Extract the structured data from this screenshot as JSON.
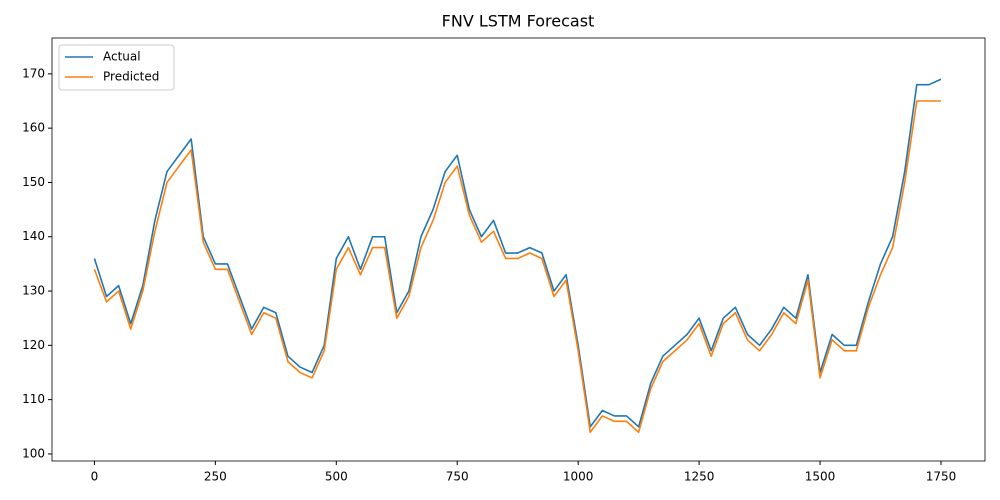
{
  "chart_data": {
    "type": "line",
    "title": "FNV LSTM Forecast",
    "x": [
      0,
      25,
      50,
      75,
      100,
      125,
      150,
      175,
      200,
      225,
      250,
      275,
      300,
      325,
      350,
      375,
      400,
      425,
      450,
      475,
      500,
      525,
      550,
      575,
      600,
      625,
      650,
      675,
      700,
      725,
      750,
      775,
      800,
      825,
      850,
      875,
      900,
      925,
      950,
      975,
      1000,
      1025,
      1050,
      1075,
      1100,
      1125,
      1150,
      1175,
      1200,
      1225,
      1250,
      1275,
      1300,
      1325,
      1350,
      1375,
      1400,
      1425,
      1450,
      1475,
      1500,
      1525,
      1550,
      1575,
      1600,
      1625,
      1650,
      1675,
      1700,
      1725,
      1750
    ],
    "series": [
      {
        "name": "Actual",
        "color": "#1f77b4",
        "values": [
          136,
          129,
          131,
          124,
          131,
          143,
          152,
          155,
          158,
          140,
          135,
          135,
          129,
          123,
          127,
          126,
          118,
          116,
          115,
          120,
          136,
          140,
          134,
          140,
          140,
          126,
          130,
          140,
          145,
          152,
          155,
          145,
          140,
          143,
          137,
          137,
          138,
          137,
          130,
          133,
          120,
          105,
          108,
          107,
          107,
          105,
          113,
          118,
          120,
          122,
          125,
          119,
          125,
          127,
          122,
          120,
          123,
          127,
          125,
          133,
          115,
          122,
          120,
          120,
          128,
          135,
          140,
          152,
          168,
          168,
          169
        ]
      },
      {
        "name": "Predicted",
        "color": "#ff7f0e",
        "values": [
          134,
          128,
          130,
          123,
          130,
          141,
          150,
          153,
          156,
          139,
          134,
          134,
          128,
          122,
          126,
          125,
          117,
          115,
          114,
          119,
          134,
          138,
          133,
          138,
          138,
          125,
          129,
          138,
          143,
          150,
          153,
          144,
          139,
          141,
          136,
          136,
          137,
          136,
          129,
          132,
          119,
          104,
          107,
          106,
          106,
          104,
          112,
          117,
          119,
          121,
          124,
          118,
          124,
          126,
          121,
          119,
          122,
          126,
          124,
          132,
          114,
          121,
          119,
          119,
          127,
          133,
          138,
          150,
          165,
          165,
          165
        ]
      }
    ],
    "xlim": [
      -87.7,
      1841
    ],
    "ylim": [
      98.7,
      176.6
    ],
    "xticks": [
      0,
      250,
      500,
      750,
      1000,
      1250,
      1500,
      1750
    ],
    "yticks": [
      100,
      110,
      120,
      130,
      140,
      150,
      160,
      170
    ],
    "grid": false,
    "legend": "upper-left"
  }
}
